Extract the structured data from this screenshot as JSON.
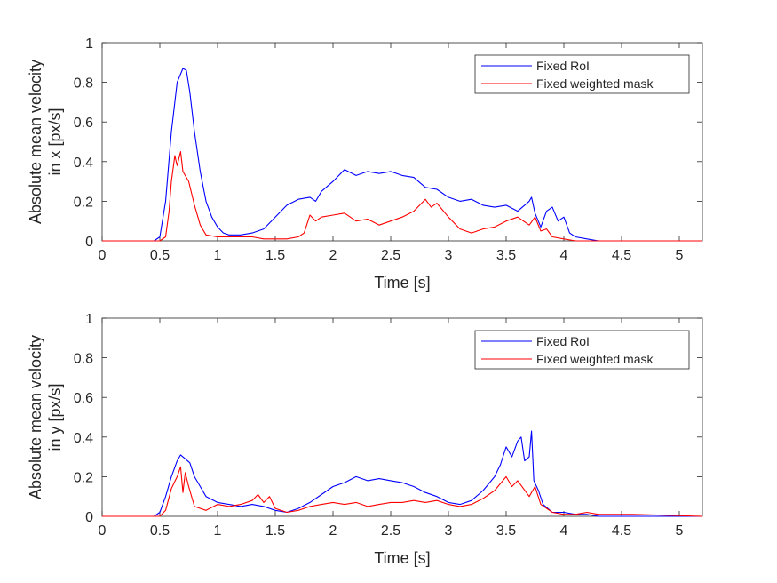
{
  "chart_data": [
    {
      "type": "line",
      "xlabel": "Time [s]",
      "ylabel": [
        "Absolute mean velocity",
        "in x [px/s]"
      ],
      "xlim": [
        0,
        5.2
      ],
      "ylim": [
        0,
        1
      ],
      "xticks": [
        0,
        0.5,
        1,
        1.5,
        2,
        2.5,
        3,
        3.5,
        4,
        4.5,
        5
      ],
      "yticks": [
        0,
        0.2,
        0.4,
        0.6,
        0.8,
        1
      ],
      "xtick_labels": [
        "0",
        "0.5",
        "1",
        "1.5",
        "2",
        "2.5",
        "3",
        "3.5",
        "4",
        "4.5",
        "5"
      ],
      "ytick_labels": [
        "0",
        "0.2",
        "0.4",
        "0.6",
        "0.8",
        "1"
      ],
      "grid": false,
      "legend_position": "top-right",
      "series": [
        {
          "name": "Fixed RoI",
          "color": "#0000ff",
          "x": [
            0,
            0.45,
            0.5,
            0.55,
            0.6,
            0.65,
            0.7,
            0.73,
            0.76,
            0.8,
            0.85,
            0.9,
            0.95,
            1.0,
            1.05,
            1.1,
            1.2,
            1.3,
            1.4,
            1.5,
            1.6,
            1.7,
            1.8,
            1.85,
            1.9,
            2.0,
            2.1,
            2.2,
            2.3,
            2.4,
            2.5,
            2.6,
            2.7,
            2.8,
            2.9,
            3.0,
            3.1,
            3.2,
            3.3,
            3.4,
            3.5,
            3.6,
            3.7,
            3.72,
            3.75,
            3.8,
            3.85,
            3.9,
            3.95,
            4.0,
            4.05,
            4.1,
            4.2,
            4.3,
            4.5,
            5.2
          ],
          "y": [
            0,
            0,
            0.02,
            0.2,
            0.55,
            0.8,
            0.87,
            0.86,
            0.75,
            0.55,
            0.35,
            0.2,
            0.12,
            0.07,
            0.04,
            0.03,
            0.03,
            0.04,
            0.06,
            0.12,
            0.18,
            0.21,
            0.22,
            0.2,
            0.25,
            0.3,
            0.36,
            0.33,
            0.35,
            0.34,
            0.35,
            0.33,
            0.32,
            0.27,
            0.26,
            0.22,
            0.2,
            0.21,
            0.18,
            0.17,
            0.18,
            0.15,
            0.2,
            0.22,
            0.14,
            0.07,
            0.15,
            0.17,
            0.1,
            0.12,
            0.04,
            0.02,
            0.01,
            0,
            0,
            0
          ]
        },
        {
          "name": "Fixed weighted mask",
          "color": "#ff0000",
          "x": [
            0,
            0.5,
            0.55,
            0.58,
            0.6,
            0.63,
            0.65,
            0.68,
            0.7,
            0.75,
            0.8,
            0.85,
            0.9,
            1.0,
            1.1,
            1.2,
            1.3,
            1.4,
            1.5,
            1.6,
            1.7,
            1.75,
            1.8,
            1.85,
            1.9,
            2.0,
            2.1,
            2.2,
            2.3,
            2.4,
            2.5,
            2.6,
            2.7,
            2.8,
            2.85,
            2.9,
            3.0,
            3.1,
            3.2,
            3.3,
            3.4,
            3.5,
            3.6,
            3.7,
            3.75,
            3.8,
            3.85,
            3.9,
            4.0,
            4.1,
            4.2,
            5.2
          ],
          "y": [
            0,
            0,
            0.02,
            0.15,
            0.3,
            0.43,
            0.38,
            0.45,
            0.35,
            0.3,
            0.18,
            0.08,
            0.03,
            0.02,
            0.02,
            0.02,
            0.02,
            0.01,
            0.01,
            0.01,
            0.02,
            0.04,
            0.13,
            0.1,
            0.12,
            0.13,
            0.14,
            0.1,
            0.11,
            0.08,
            0.1,
            0.12,
            0.15,
            0.21,
            0.17,
            0.19,
            0.12,
            0.06,
            0.04,
            0.06,
            0.07,
            0.1,
            0.12,
            0.08,
            0.12,
            0.05,
            0.06,
            0.02,
            0.01,
            0,
            0,
            0
          ]
        }
      ]
    },
    {
      "type": "line",
      "xlabel": "Time [s]",
      "ylabel": [
        "Absolute mean velocity",
        "in y [px/s]"
      ],
      "xlim": [
        0,
        5.2
      ],
      "ylim": [
        0,
        1
      ],
      "xticks": [
        0,
        0.5,
        1,
        1.5,
        2,
        2.5,
        3,
        3.5,
        4,
        4.5,
        5
      ],
      "yticks": [
        0,
        0.2,
        0.4,
        0.6,
        0.8,
        1
      ],
      "xtick_labels": [
        "0",
        "0.5",
        "1",
        "1.5",
        "2",
        "2.5",
        "3",
        "3.5",
        "4",
        "4.5",
        "5"
      ],
      "ytick_labels": [
        "0",
        "0.2",
        "0.4",
        "0.6",
        "0.8",
        "1"
      ],
      "grid": false,
      "legend_position": "top-right",
      "series": [
        {
          "name": "Fixed RoI",
          "color": "#0000ff",
          "x": [
            0,
            0.45,
            0.5,
            0.55,
            0.6,
            0.65,
            0.68,
            0.72,
            0.76,
            0.8,
            0.85,
            0.9,
            1.0,
            1.1,
            1.2,
            1.3,
            1.4,
            1.5,
            1.6,
            1.7,
            1.8,
            1.9,
            2.0,
            2.1,
            2.2,
            2.3,
            2.4,
            2.5,
            2.6,
            2.7,
            2.8,
            2.9,
            3.0,
            3.1,
            3.2,
            3.3,
            3.4,
            3.45,
            3.5,
            3.55,
            3.6,
            3.63,
            3.66,
            3.7,
            3.72,
            3.74,
            3.78,
            3.82,
            3.9,
            4.0,
            4.1,
            4.2,
            4.3,
            5.2
          ],
          "y": [
            0,
            0,
            0.02,
            0.1,
            0.2,
            0.28,
            0.31,
            0.29,
            0.27,
            0.2,
            0.15,
            0.1,
            0.07,
            0.06,
            0.05,
            0.06,
            0.05,
            0.03,
            0.02,
            0.04,
            0.07,
            0.11,
            0.15,
            0.17,
            0.2,
            0.18,
            0.19,
            0.18,
            0.17,
            0.15,
            0.12,
            0.1,
            0.07,
            0.06,
            0.08,
            0.13,
            0.2,
            0.26,
            0.35,
            0.3,
            0.38,
            0.4,
            0.28,
            0.3,
            0.43,
            0.18,
            0.13,
            0.06,
            0.02,
            0.02,
            0.01,
            0.01,
            0,
            0
          ]
        },
        {
          "name": "Fixed weighted mask",
          "color": "#ff0000",
          "x": [
            0,
            0.5,
            0.55,
            0.6,
            0.65,
            0.68,
            0.7,
            0.72,
            0.75,
            0.8,
            0.9,
            1.0,
            1.1,
            1.2,
            1.3,
            1.35,
            1.4,
            1.45,
            1.5,
            1.6,
            1.7,
            1.8,
            1.9,
            2.0,
            2.1,
            2.2,
            2.3,
            2.4,
            2.5,
            2.6,
            2.7,
            2.8,
            2.9,
            3.0,
            3.1,
            3.2,
            3.3,
            3.4,
            3.5,
            3.55,
            3.6,
            3.65,
            3.7,
            3.75,
            3.8,
            3.9,
            4.0,
            4.1,
            4.2,
            4.3,
            4.6,
            5.2
          ],
          "y": [
            0,
            0,
            0.03,
            0.14,
            0.2,
            0.25,
            0.12,
            0.22,
            0.15,
            0.05,
            0.03,
            0.06,
            0.05,
            0.06,
            0.08,
            0.11,
            0.07,
            0.1,
            0.04,
            0.02,
            0.03,
            0.05,
            0.06,
            0.07,
            0.06,
            0.07,
            0.05,
            0.06,
            0.07,
            0.07,
            0.08,
            0.07,
            0.08,
            0.06,
            0.05,
            0.06,
            0.09,
            0.13,
            0.2,
            0.15,
            0.18,
            0.14,
            0.1,
            0.15,
            0.06,
            0.02,
            0.01,
            0.01,
            0.02,
            0.01,
            0.01,
            0
          ]
        }
      ]
    }
  ]
}
